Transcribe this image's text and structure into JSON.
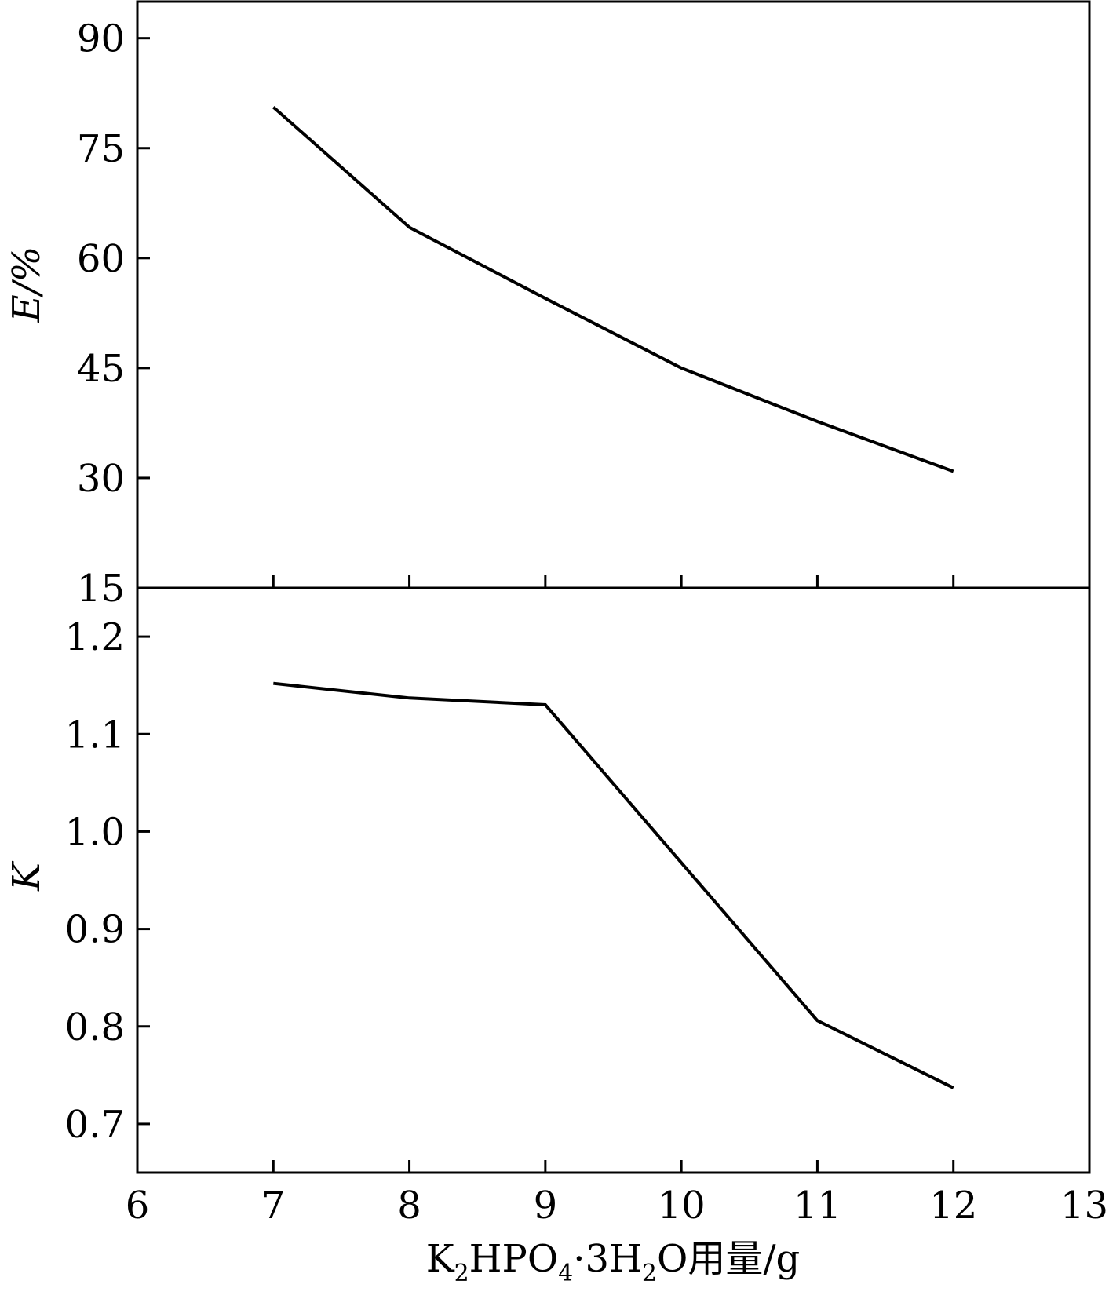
{
  "chart_data": [
    {
      "type": "line",
      "panel": "top",
      "x": [
        7,
        8,
        9,
        10,
        11,
        12
      ],
      "series": [
        {
          "values": [
            80.6,
            64.2,
            54.5,
            45.0,
            37.7,
            30.9
          ]
        }
      ],
      "ylabel": "E/%",
      "xlim": [
        6,
        13
      ],
      "ylim": [
        15,
        95
      ],
      "yticks": [
        15,
        30,
        45,
        60,
        75,
        90
      ],
      "ytick_labels": [
        "15",
        "30",
        "45",
        "60",
        "75",
        "90"
      ],
      "grid": false
    },
    {
      "type": "line",
      "panel": "bottom",
      "x": [
        7,
        8,
        9,
        10,
        11,
        12
      ],
      "series": [
        {
          "values": [
            1.152,
            1.137,
            1.13,
            0.968,
            0.806,
            0.737
          ]
        }
      ],
      "ylabel": "K",
      "xlim": [
        6,
        13
      ],
      "ylim": [
        0.65,
        1.25
      ],
      "yticks": [
        0.7,
        0.8,
        0.9,
        1.0,
        1.1,
        1.2
      ],
      "ytick_labels": [
        "0.7",
        "0.8",
        "0.9",
        "1.0",
        "1.1",
        "1.2"
      ],
      "xticks": [
        6,
        7,
        8,
        9,
        10,
        11,
        12,
        13
      ],
      "xtick_labels": [
        "6",
        "7",
        "8",
        "9",
        "10",
        "11",
        "12",
        "13"
      ],
      "xlabel": {
        "parts": [
          "K",
          "2",
          "HPO",
          "4",
          "·3H",
          "2",
          "O用量/g"
        ]
      },
      "grid": false
    }
  ]
}
